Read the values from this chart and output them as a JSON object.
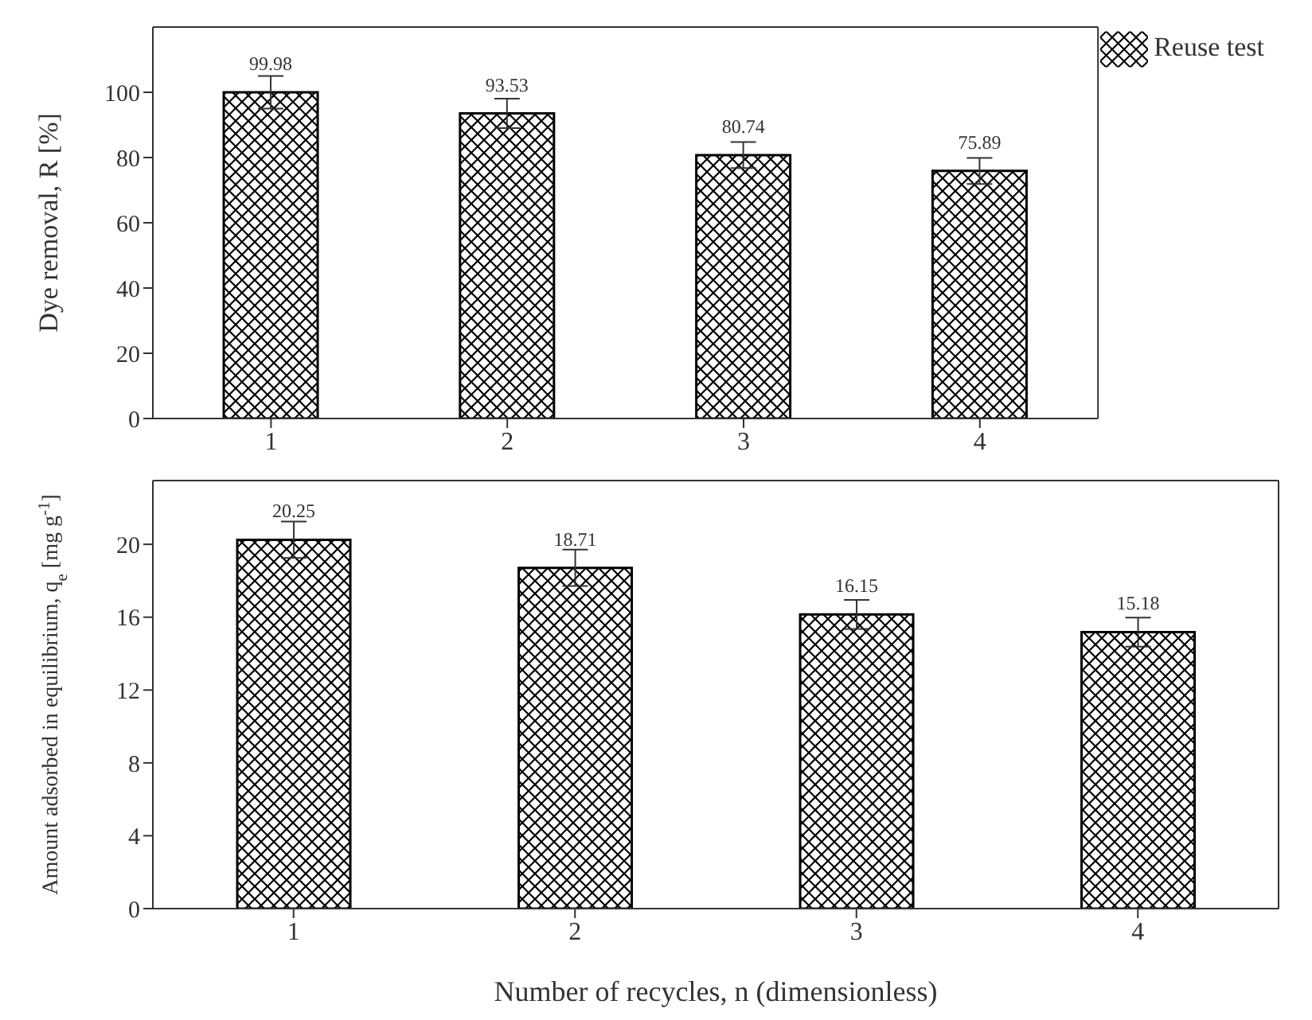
{
  "chart_data": [
    {
      "type": "bar",
      "categories": [
        "1",
        "2",
        "3",
        "4"
      ],
      "ylabel": "Dye removal, R [%]",
      "ylim": [
        0,
        120
      ],
      "yticks": [
        0,
        20,
        40,
        60,
        80,
        100
      ],
      "data_labels": true,
      "legend": "top right",
      "series": [
        {
          "name": "Reuse test",
          "color": "#000000",
          "values": [
            99.98,
            93.53,
            80.74,
            75.89
          ],
          "errors": [
            5,
            4.5,
            4,
            4
          ]
        }
      ]
    },
    {
      "type": "bar",
      "categories": [
        "1",
        "2",
        "3",
        "4"
      ],
      "xlabel": "Number of recycles, n (dimensionless)",
      "ylabel": "Amount adsorbed in equilibrium, q$_{e}$ [mg g$^{-1}$]",
      "ylim": [
        0,
        23.5
      ],
      "yticks": [
        0,
        4,
        8,
        12,
        16,
        20
      ],
      "data_labels": true,
      "series": [
        {
          "color": "#000000",
          "values": [
            20.25,
            18.71,
            16.15,
            15.18
          ],
          "errors": [
            1,
            1,
            0.8,
            0.8
          ]
        }
      ]
    }
  ]
}
